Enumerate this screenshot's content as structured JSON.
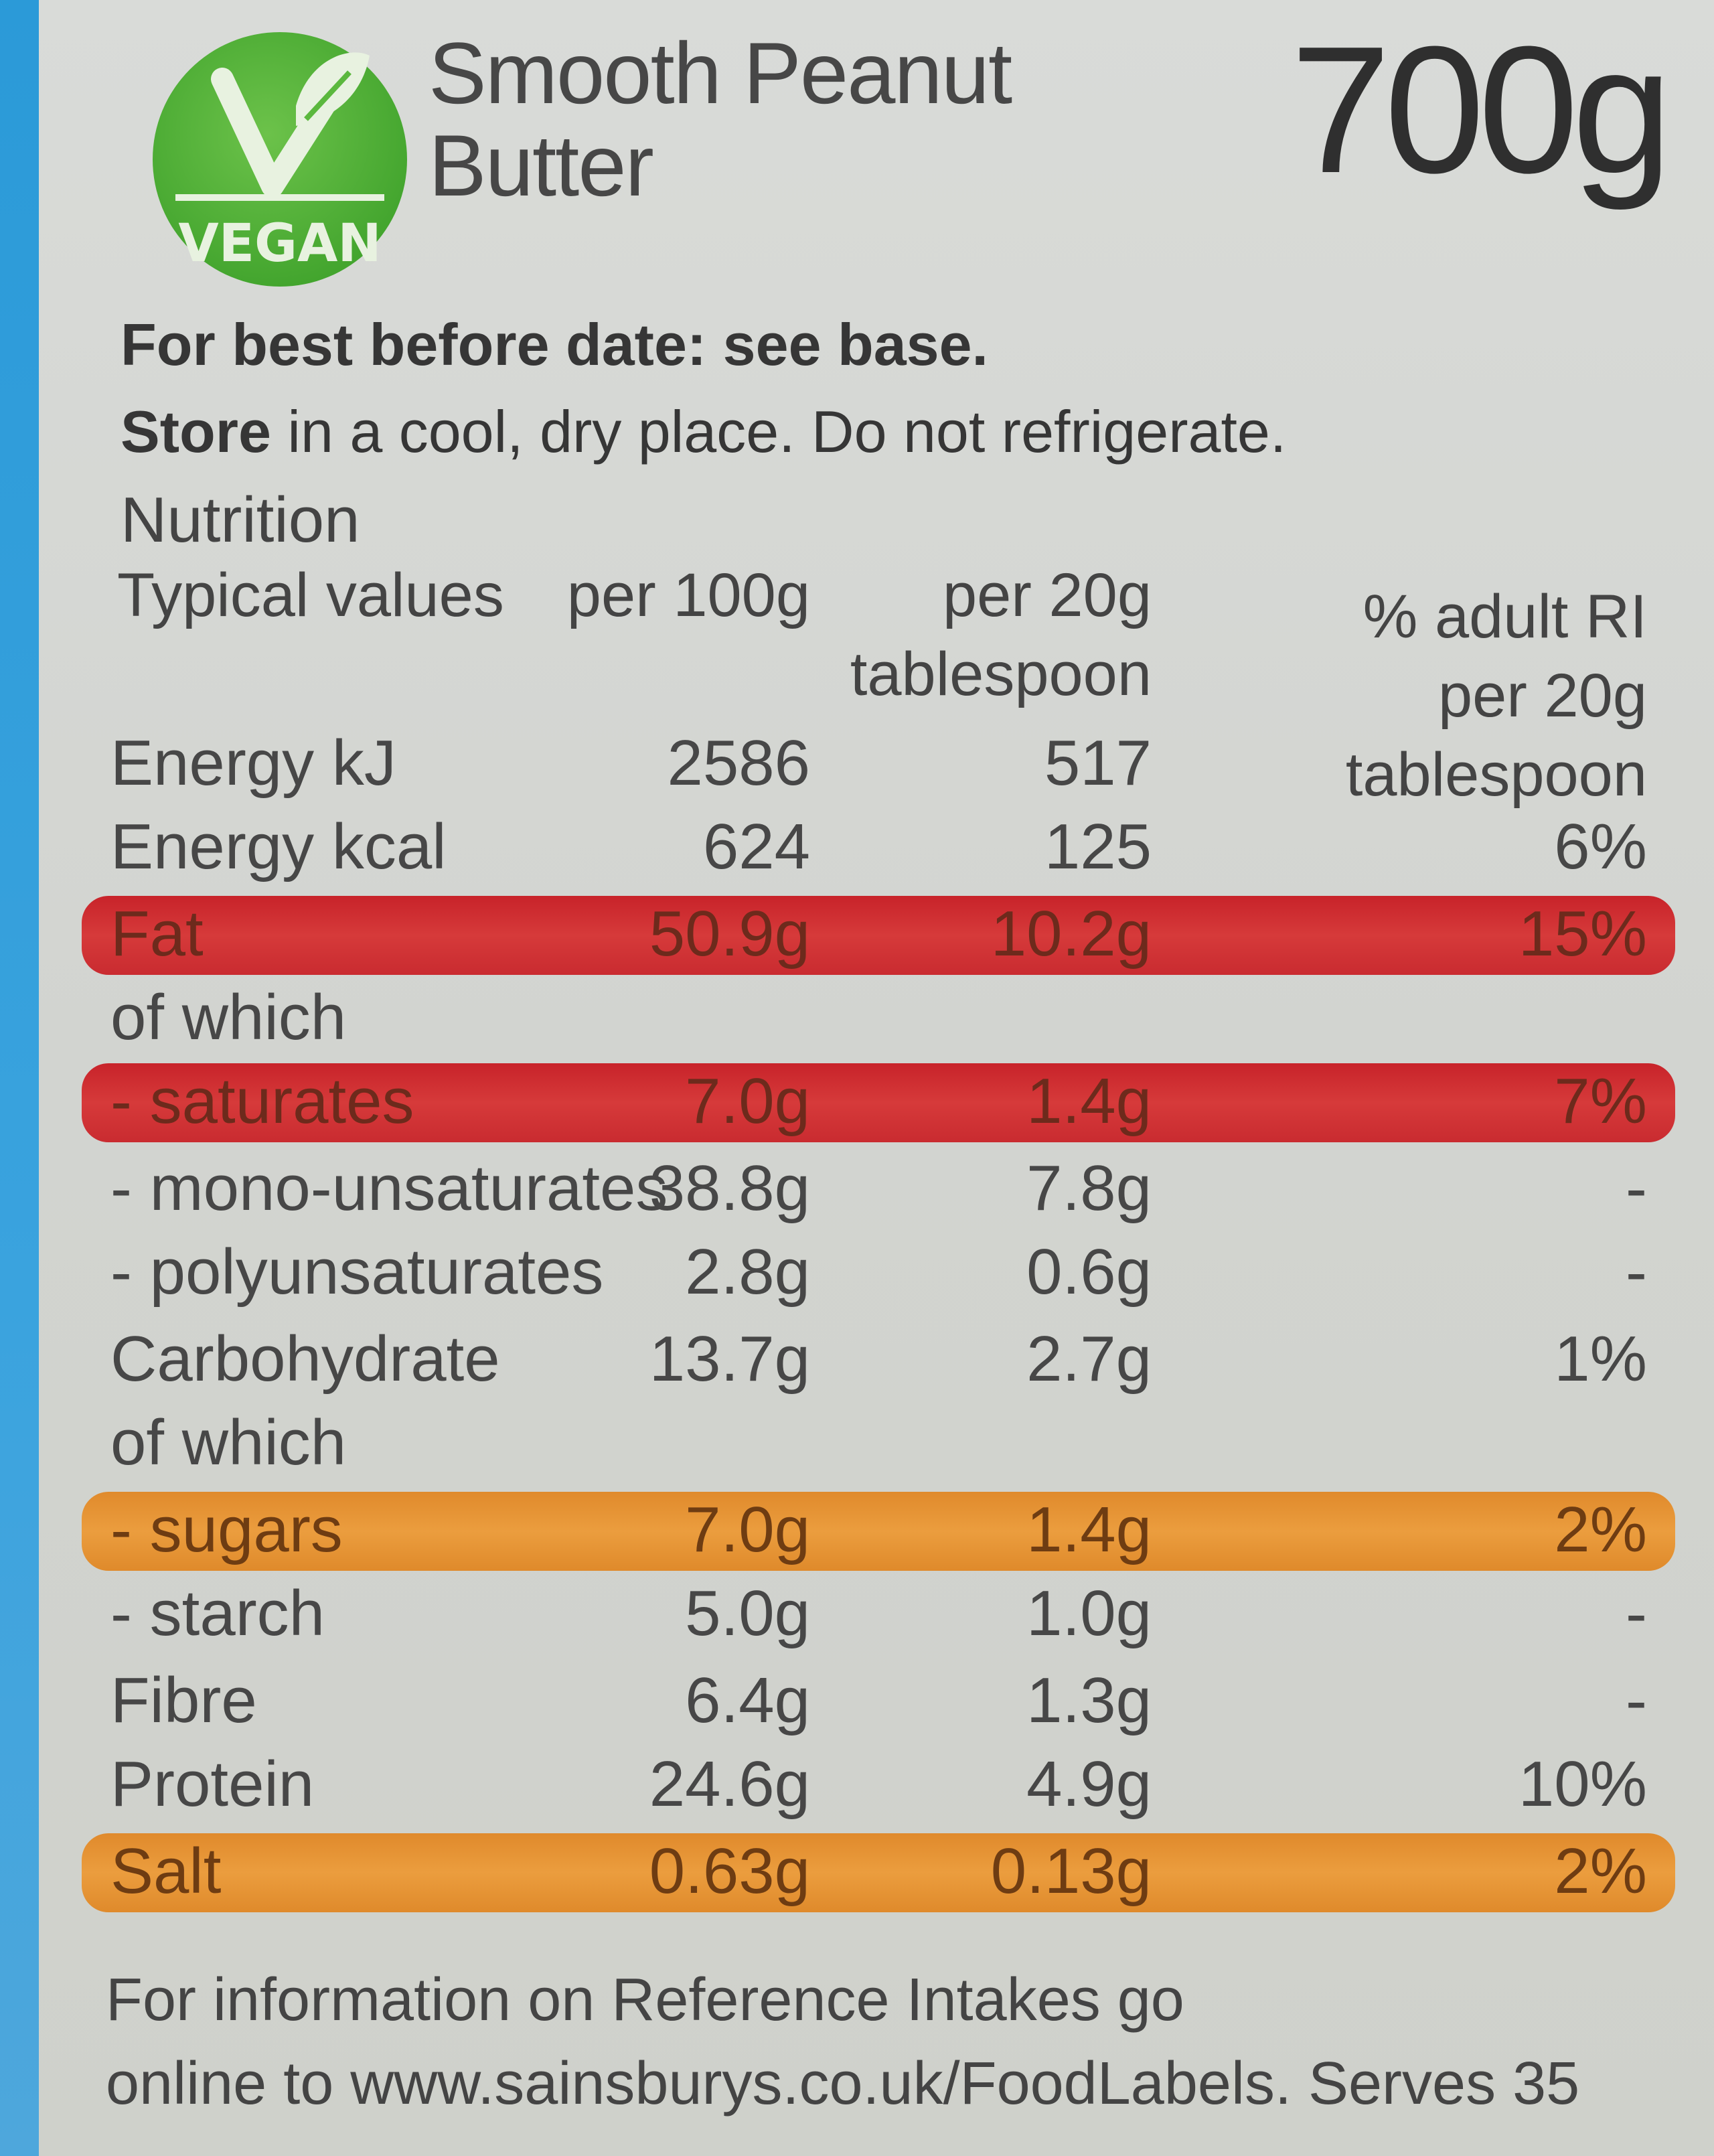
{
  "header": {
    "badge_text": "VEGAN",
    "product_line1": "Smooth Peanut",
    "product_line2": "Butter",
    "weight": "700g",
    "badge_color": "#4caf3a"
  },
  "storage": {
    "best_before": "For best before date: see base.",
    "store_bold": "Store",
    "store_rest": " in a cool, dry place. Do not refrigerate."
  },
  "nutrition": {
    "title": "Nutrition",
    "headers": {
      "label": "Typical values",
      "per100": "per 100g",
      "per20_line1": "per 20g",
      "per20_line2": "tablespoon",
      "ri_line1": "% adult RI",
      "ri_line2": "per 20g tablespoon"
    },
    "rows": [
      {
        "label": "Energy kJ",
        "per100": "2586",
        "per20": "517",
        "ri": "",
        "highlight": ""
      },
      {
        "label": "Energy kcal",
        "per100": "624",
        "per20": "125",
        "ri": "6%",
        "highlight": ""
      },
      {
        "label": "Fat",
        "per100": "50.9g",
        "per20": "10.2g",
        "ri": "15%",
        "highlight": "red"
      },
      {
        "label": "of which",
        "per100": "",
        "per20": "",
        "ri": "",
        "highlight": ""
      },
      {
        "label": "- saturates",
        "per100": "7.0g",
        "per20": "1.4g",
        "ri": "7%",
        "highlight": "red"
      },
      {
        "label": "- mono-unsaturates",
        "per100": "38.8g",
        "per20": "7.8g",
        "ri": "-",
        "highlight": ""
      },
      {
        "label": "- polyunsaturates",
        "per100": "2.8g",
        "per20": "0.6g",
        "ri": "-",
        "highlight": ""
      },
      {
        "label": "Carbohydrate",
        "per100": "13.7g",
        "per20": "2.7g",
        "ri": "1%",
        "highlight": ""
      },
      {
        "label": "of which",
        "per100": "",
        "per20": "",
        "ri": "",
        "highlight": ""
      },
      {
        "label": "- sugars",
        "per100": "7.0g",
        "per20": "1.4g",
        "ri": "2%",
        "highlight": "amber"
      },
      {
        "label": "- starch",
        "per100": "5.0g",
        "per20": "1.0g",
        "ri": "-",
        "highlight": ""
      },
      {
        "label": "Fibre",
        "per100": "6.4g",
        "per20": "1.3g",
        "ri": "-",
        "highlight": ""
      },
      {
        "label": "Protein",
        "per100": "24.6g",
        "per20": "4.9g",
        "ri": "10%",
        "highlight": ""
      },
      {
        "label": "Salt",
        "per100": "0.63g",
        "per20": "0.13g",
        "ri": "2%",
        "highlight": "amber"
      }
    ]
  },
  "footer": {
    "line1": "For information on Reference Intakes go",
    "line2": "online to www.sainsburys.co.uk/FoodLabels. Serves 35"
  }
}
